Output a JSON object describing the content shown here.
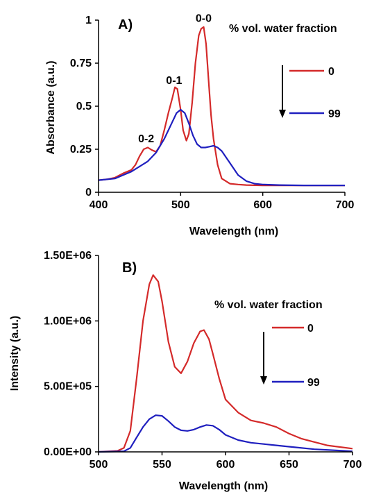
{
  "chart_data": [
    {
      "type": "line",
      "panel_label": "A)",
      "xlabel": "Wavelength (nm)",
      "ylabel": "Absorbance (a.u.)",
      "xlim": [
        400,
        700
      ],
      "ylim": [
        0,
        1
      ],
      "x_ticks": [
        400,
        500,
        600,
        700
      ],
      "x_tick_labels": [
        "400",
        "500",
        "600",
        "700"
      ],
      "y_ticks": [
        0,
        0.25,
        0.5,
        0.75,
        1
      ],
      "y_tick_labels": [
        "0",
        "0.25",
        "0.5",
        "0.75",
        "1"
      ],
      "grid": false,
      "legend": {
        "title": "% vol. water fraction",
        "position": "top-right",
        "arrow": "down"
      },
      "annotations": [
        {
          "text": "0-0",
          "x": 528,
          "y": 0.99
        },
        {
          "text": "0-1",
          "x": 492,
          "y": 0.63
        },
        {
          "text": "0-2",
          "x": 458,
          "y": 0.29
        }
      ],
      "series": [
        {
          "name": "0",
          "color": "#d42a2a",
          "x": [
            400,
            410,
            420,
            430,
            440,
            445,
            450,
            455,
            460,
            465,
            470,
            475,
            480,
            485,
            490,
            493,
            496,
            500,
            503,
            507,
            510,
            514,
            518,
            522,
            525,
            528,
            531,
            534,
            537,
            540,
            545,
            550,
            560,
            570,
            580,
            600,
            620,
            650,
            700
          ],
          "y": [
            0.07,
            0.075,
            0.085,
            0.11,
            0.13,
            0.16,
            0.21,
            0.25,
            0.26,
            0.245,
            0.235,
            0.27,
            0.36,
            0.46,
            0.55,
            0.61,
            0.6,
            0.48,
            0.36,
            0.3,
            0.34,
            0.52,
            0.75,
            0.91,
            0.95,
            0.96,
            0.86,
            0.65,
            0.45,
            0.31,
            0.16,
            0.08,
            0.05,
            0.045,
            0.042,
            0.04,
            0.04,
            0.04,
            0.04
          ]
        },
        {
          "name": "99",
          "color": "#1f1fbf",
          "x": [
            400,
            420,
            440,
            450,
            460,
            470,
            480,
            490,
            495,
            500,
            505,
            510,
            515,
            520,
            525,
            530,
            535,
            540,
            545,
            550,
            560,
            570,
            580,
            590,
            600,
            620,
            650,
            700
          ],
          "y": [
            0.07,
            0.08,
            0.12,
            0.15,
            0.18,
            0.23,
            0.31,
            0.41,
            0.46,
            0.48,
            0.46,
            0.4,
            0.33,
            0.28,
            0.26,
            0.26,
            0.265,
            0.27,
            0.26,
            0.24,
            0.17,
            0.1,
            0.065,
            0.05,
            0.045,
            0.042,
            0.04,
            0.04
          ]
        }
      ]
    },
    {
      "type": "line",
      "panel_label": "B)",
      "xlabel": "Wavelength (nm)",
      "ylabel": "Intensity (a.u.)",
      "xlim": [
        500,
        700
      ],
      "ylim": [
        0,
        1500000
      ],
      "x_ticks": [
        500,
        550,
        600,
        650,
        700
      ],
      "x_tick_labels": [
        "500",
        "550",
        "600",
        "650",
        "700"
      ],
      "y_ticks": [
        0,
        500000,
        1000000,
        1500000
      ],
      "y_tick_labels": [
        "0.00E+00",
        "5.00E+05",
        "1.00E+06",
        "1.50E+06"
      ],
      "grid": false,
      "legend": {
        "title": "% vol. water fraction",
        "position": "top-right",
        "arrow": "down"
      },
      "series": [
        {
          "name": "0",
          "color": "#d42a2a",
          "x": [
            500,
            515,
            520,
            525,
            530,
            535,
            540,
            543,
            547,
            550,
            555,
            560,
            565,
            570,
            575,
            580,
            583,
            587,
            590,
            595,
            600,
            610,
            620,
            630,
            640,
            650,
            660,
            680,
            700
          ],
          "y": [
            0,
            8000,
            30000,
            160000,
            560000,
            1000000,
            1280000,
            1350000,
            1300000,
            1150000,
            840000,
            650000,
            600000,
            690000,
            830000,
            920000,
            930000,
            860000,
            750000,
            560000,
            400000,
            300000,
            240000,
            220000,
            190000,
            140000,
            100000,
            50000,
            25000
          ]
        },
        {
          "name": "99",
          "color": "#1f1fbf",
          "x": [
            500,
            520,
            525,
            530,
            535,
            540,
            545,
            550,
            555,
            560,
            565,
            570,
            575,
            580,
            585,
            590,
            595,
            600,
            610,
            620,
            630,
            640,
            650,
            670,
            700
          ],
          "y": [
            0,
            5000,
            30000,
            110000,
            190000,
            250000,
            280000,
            275000,
            235000,
            190000,
            165000,
            160000,
            170000,
            190000,
            205000,
            200000,
            170000,
            130000,
            90000,
            70000,
            60000,
            50000,
            40000,
            20000,
            5000
          ]
        }
      ]
    }
  ]
}
